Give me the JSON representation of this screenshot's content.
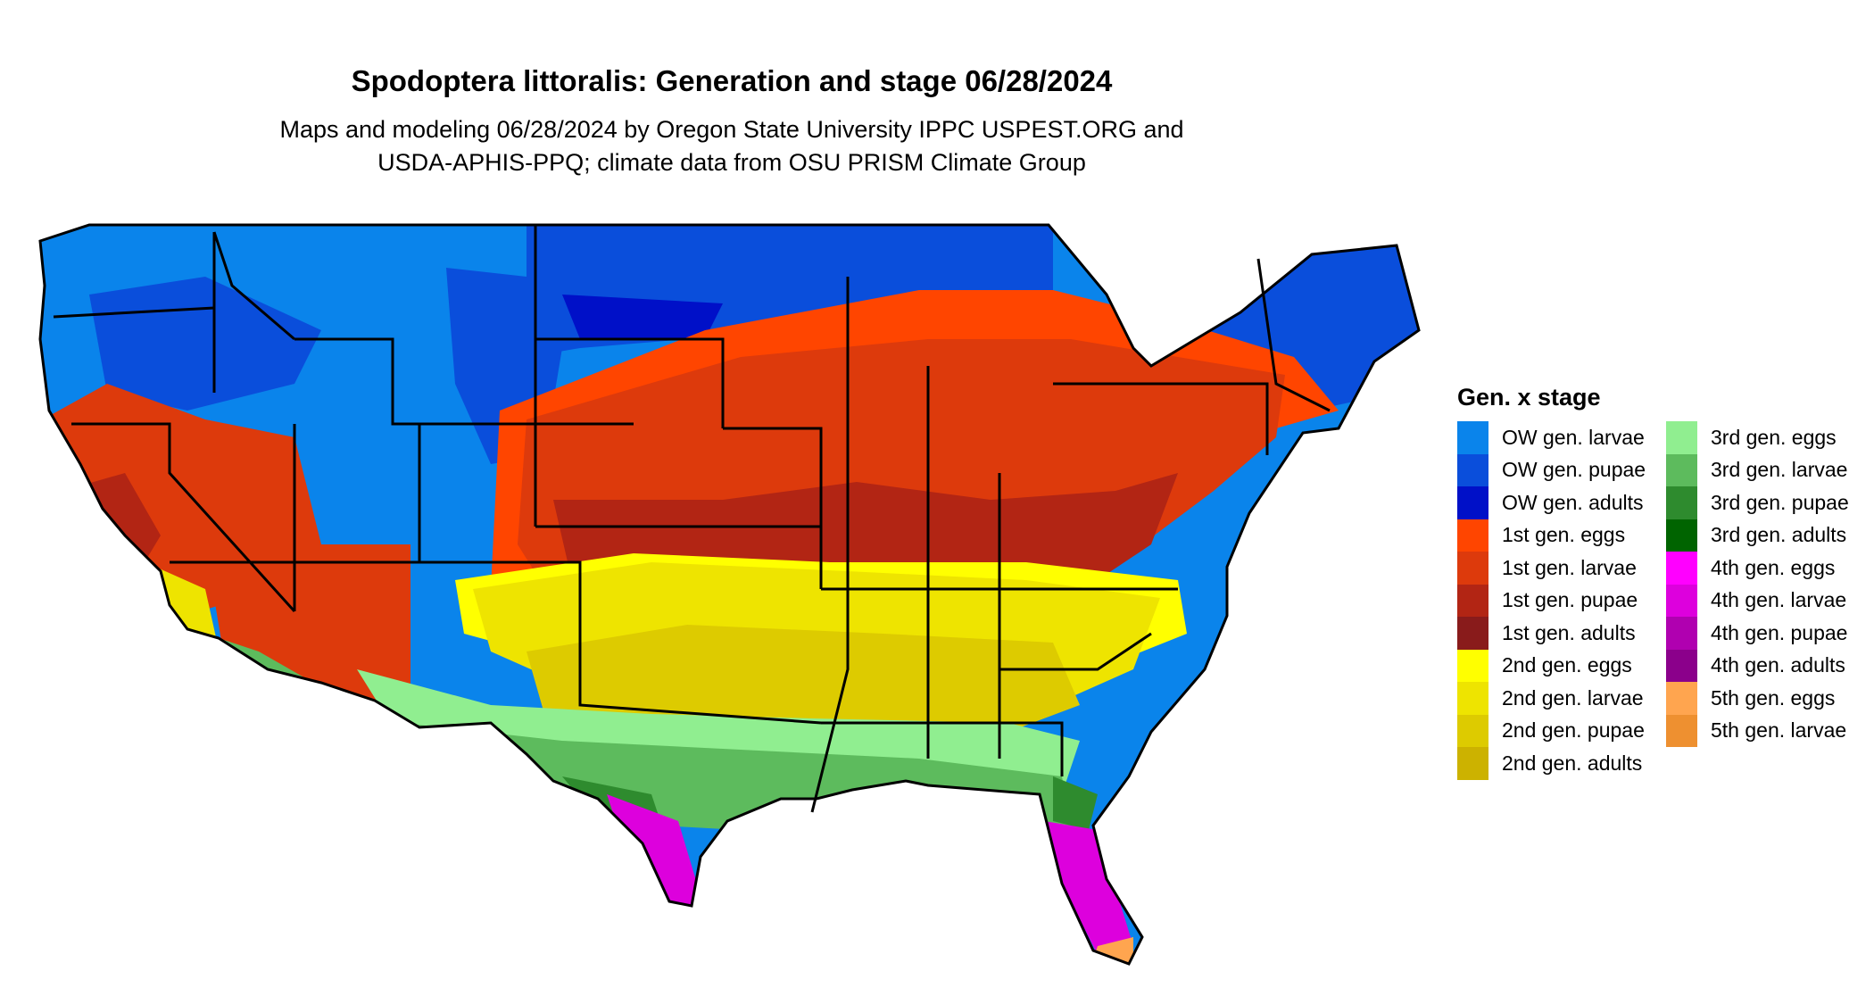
{
  "header": {
    "title": "Spodoptera littoralis: Generation and stage 06/28/2024",
    "subtitle_line1": "Maps and modeling 06/28/2024 by Oregon State University IPPC USPEST.ORG and",
    "subtitle_line2": "USDA-APHIS-PPQ; climate data from OSU PRISM Climate Group"
  },
  "legend": {
    "title": "Gen. x stage",
    "column1": [
      {
        "label": "OW gen. larvae",
        "color": "#0A84EB"
      },
      {
        "label": "OW gen. pupae",
        "color": "#0A4EDB"
      },
      {
        "label": "OW gen. adults",
        "color": "#0010C8"
      },
      {
        "label": "1st gen. eggs",
        "color": "#FF4500"
      },
      {
        "label": "1st gen. larvae",
        "color": "#DD3A0C"
      },
      {
        "label": "1st gen. pupae",
        "color": "#B22514"
      },
      {
        "label": "1st gen. adults",
        "color": "#891B1B"
      },
      {
        "label": "2nd gen. eggs",
        "color": "#FFFF00"
      },
      {
        "label": "2nd gen. larvae",
        "color": "#EEE400"
      },
      {
        "label": "2nd gen. pupae",
        "color": "#DDCB00"
      },
      {
        "label": "2nd gen. adults",
        "color": "#CCB200"
      }
    ],
    "column2": [
      {
        "label": "3rd gen. eggs",
        "color": "#90EE90"
      },
      {
        "label": "3rd gen. larvae",
        "color": "#5DBB5D"
      },
      {
        "label": "3rd gen. pupae",
        "color": "#2E8B2E"
      },
      {
        "label": "3rd gen. adults",
        "color": "#006400"
      },
      {
        "label": "4th gen. eggs",
        "color": "#FF00FF"
      },
      {
        "label": "4th gen. larvae",
        "color": "#DD00DD"
      },
      {
        "label": "4th gen. pupae",
        "color": "#B000B0"
      },
      {
        "label": "4th gen. adults",
        "color": "#8B008B"
      },
      {
        "label": "5th gen. eggs",
        "color": "#FFA54F"
      },
      {
        "label": "5th gen. larvae",
        "color": "#EE9030"
      }
    ]
  },
  "map": {
    "region": "contiguous-united-states",
    "border_color": "#000000"
  }
}
